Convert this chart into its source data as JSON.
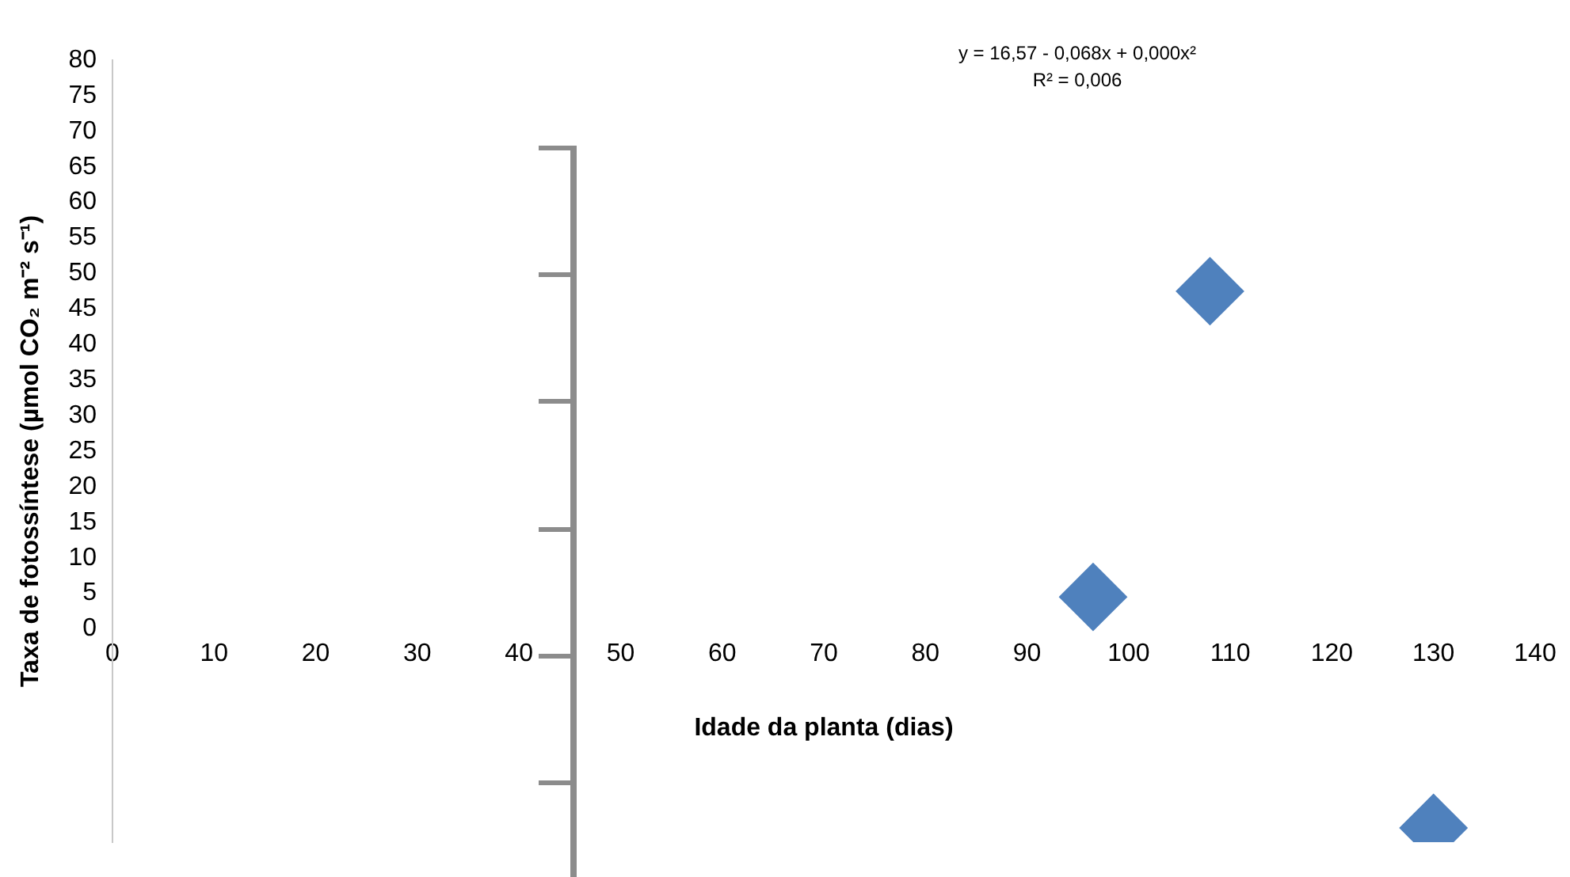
{
  "chart_data": {
    "type": "scatter",
    "xlabel": "Idade da planta (dias)",
    "ylabel": "Taxa de fotossíntese (µmol CO₂ m⁻² s⁻¹)",
    "annotations": [
      "y = 16,57 - 0,068x + 0,000x²",
      "R² = 0,006"
    ],
    "series": [
      {
        "color": "#4f81bd",
        "x": [
          108,
          96.5,
          130
        ],
        "values": [
          47.5,
          4.5,
          -28
        ]
      }
    ],
    "xlim": [
      0,
      140
    ],
    "xticks": [
      0,
      10,
      20,
      30,
      40,
      50,
      60,
      70,
      80,
      90,
      100,
      110,
      120,
      130,
      140
    ],
    "ylim": [
      -30,
      80
    ],
    "yticks": [
      0,
      5,
      10,
      15,
      20,
      25,
      30,
      35,
      40,
      45,
      50,
      55,
      60,
      65,
      70,
      75,
      80
    ],
    "grid": false,
    "legend": false,
    "marker": "diamond"
  }
}
